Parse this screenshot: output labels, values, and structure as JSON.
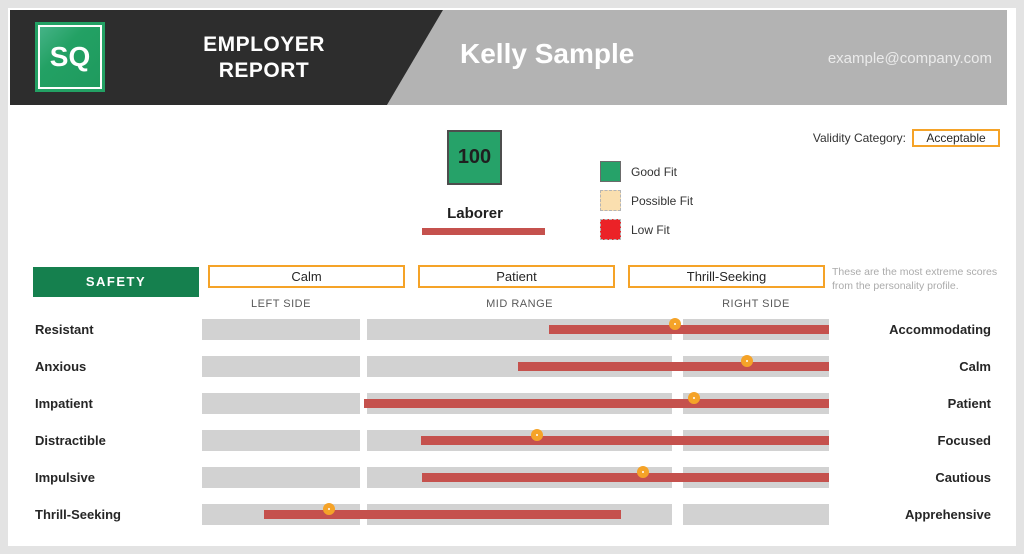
{
  "header": {
    "logo_text": "SQ",
    "report_title": "EMPLOYER\nREPORT",
    "person_name": "Kelly Sample",
    "email": "example@company.com"
  },
  "validity": {
    "label": "Validity Category:",
    "value": "Acceptable"
  },
  "score": {
    "value": "100",
    "job_title": "Laborer"
  },
  "legend": {
    "items": [
      {
        "label": "Good Fit",
        "color": "#26a269",
        "border": "1px solid #6b6b6b"
      },
      {
        "label": "Possible Fit",
        "color": "#fadfaf",
        "border": "1px dashed #b5b5b5"
      },
      {
        "label": "Low Fit",
        "color": "#eb2227",
        "border": "1px dashed #b5b5b5"
      }
    ]
  },
  "section": {
    "name": "SAFETY",
    "categories": [
      "Calm",
      "Patient",
      "Thrill-Seeking"
    ],
    "note": "These are the most extreme scores from the personality profile."
  },
  "chart_data": {
    "type": "bar",
    "subtype": "range-bars-with-point-markers",
    "title": "SAFETY personality profile",
    "scale_note": "values are percent of track width, 0 = far left, 100 = far right",
    "zones": [
      {
        "label": "LEFT SIDE",
        "start": 0,
        "end": 25.2
      },
      {
        "label": "MID RANGE",
        "start": 26.3,
        "end": 75.0
      },
      {
        "label": "RIGHT SIDE",
        "start": 76.7,
        "end": 100
      }
    ],
    "rows": [
      {
        "left_trait": "Resistant",
        "right_trait": "Accommodating",
        "bar_start": 55.3,
        "bar_end": 100,
        "marker": 76.2
      },
      {
        "left_trait": "Anxious",
        "right_trait": "Calm",
        "bar_start": 50.4,
        "bar_end": 100,
        "marker": 87.7
      },
      {
        "left_trait": "Impatient",
        "right_trait": "Patient",
        "bar_start": 25.8,
        "bar_end": 100,
        "marker": 79.3
      },
      {
        "left_trait": "Distractible",
        "right_trait": "Focused",
        "bar_start": 34.9,
        "bar_end": 100,
        "marker": 54.2
      },
      {
        "left_trait": "Impulsive",
        "right_trait": "Cautious",
        "bar_start": 35.1,
        "bar_end": 100,
        "marker": 71.1
      },
      {
        "left_trait": "Thrill-Seeking",
        "right_trait": "Apprehensive",
        "bar_start": 9.9,
        "bar_end": 66.8,
        "marker": 21.1
      }
    ],
    "colors": {
      "bar": "#c5514d",
      "marker_ring": "#f5a328",
      "track": "#d2d2d2"
    }
  }
}
